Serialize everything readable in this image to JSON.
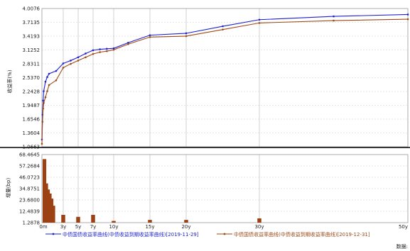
{
  "chart_data": [
    {
      "type": "line",
      "ylabel": "收益率(%)",
      "y_ticks": [
        "4.0076",
        "3.7135",
        "3.4193",
        "3.1252",
        "2.8311",
        "2.5370",
        "2.2428",
        "1.9487",
        "1.6546",
        "1.3604",
        "1.0663"
      ],
      "ylim": [
        1.0663,
        4.0076
      ],
      "x_ticks": [
        "0m",
        "3y",
        "5y",
        "7y",
        "10y",
        "15y",
        "20y",
        "30y",
        "50y"
      ],
      "xlim": [
        0,
        50
      ],
      "grid": true,
      "series": [
        {
          "name": "中债国债收益率曲线(中债收益到期收益率曲线)[2019-11-29]",
          "color": "#1d1fd0",
          "x": [
            0,
            0.08,
            0.17,
            0.25,
            0.5,
            0.75,
            1,
            2,
            3,
            4,
            5,
            6,
            7,
            8,
            9,
            10,
            12,
            15,
            20,
            25,
            30,
            40,
            50
          ],
          "y": [
            1.22,
            1.75,
            2.05,
            2.25,
            2.45,
            2.55,
            2.62,
            2.68,
            2.84,
            2.9,
            2.97,
            3.05,
            3.12,
            3.14,
            3.15,
            3.16,
            3.28,
            3.44,
            3.48,
            3.63,
            3.77,
            3.84,
            3.88
          ]
        },
        {
          "name": "中债国债收益率曲线(中债收益到期收益率曲线)[2019-12-31]",
          "color": "#9c4a16",
          "x": [
            0,
            0.08,
            0.17,
            0.25,
            0.5,
            0.75,
            1,
            2,
            3,
            4,
            5,
            6,
            7,
            8,
            9,
            10,
            12,
            15,
            20,
            25,
            30,
            40,
            50
          ],
          "y": [
            1.13,
            1.6,
            1.88,
            2.0,
            2.12,
            2.25,
            2.38,
            2.48,
            2.75,
            2.83,
            2.9,
            2.97,
            3.04,
            3.08,
            3.1,
            3.13,
            3.25,
            3.4,
            3.42,
            3.56,
            3.7,
            3.75,
            3.78
          ]
        }
      ]
    },
    {
      "type": "bar",
      "ylabel": "增量(bp)",
      "y_ticks": [
        "68.4645",
        "57.2684",
        "46.0723",
        "34.8751",
        "23.6800",
        "12.4839",
        "1.2878"
      ],
      "ylim": [
        1.2878,
        68.4645
      ],
      "xlim": [
        0,
        50
      ],
      "color": "#9c4114",
      "x": [
        0,
        0.25,
        0.5,
        0.75,
        1,
        1.25,
        1.5,
        3,
        5,
        7,
        10,
        15,
        20,
        30
      ],
      "values": [
        64.0,
        64.0,
        40.0,
        34.0,
        30.0,
        25.0,
        18.0,
        9.0,
        7.0,
        9.0,
        3.0,
        4.0,
        4.0,
        5.5
      ]
    }
  ],
  "legend": [
    {
      "label": "中债国债收益率曲线(中债收益到期收益率曲线)[2019-11-29]",
      "color": "#1d1fd0"
    },
    {
      "label": "中债国债收益率曲线(中债收益到期收益率曲线)[2019-12-31]",
      "color": "#9c4a16"
    }
  ],
  "source_label": "数据:"
}
